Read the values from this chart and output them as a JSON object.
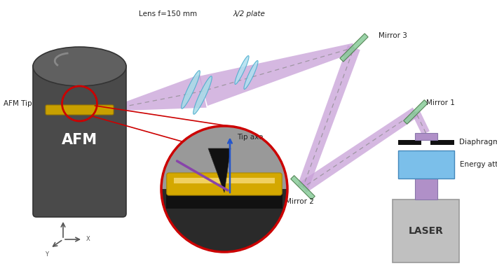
{
  "bg_color": "#ffffff",
  "afm_text": "AFM",
  "afm_text_color": "#ffffff",
  "afm_tip_label": "AFM Tip",
  "laser_color": "#c0c0c0",
  "laser_text": "LASER",
  "energy_att_color": "#7bbfea",
  "energy_att_label": "Energy attenutor",
  "diaphragm_label": "Diaphragm",
  "mirror1_label": "Mirror 1",
  "mirror2_label": "Mirror 2",
  "mirror3_label": "Mirror 3",
  "lens_label": "Lens f=150 mm",
  "halfwave_label": "λ/2 plate",
  "beam_color": "#c8a0d8",
  "beam_alpha": 0.75,
  "mirror_color": "#88cc99",
  "lens_color": "#a8dce8",
  "dashed_color": "#888888",
  "red_circle_color": "#cc0000",
  "tip_axe_label": "Tip axe",
  "coord_color": "#555555",
  "purple_stem": "#b090c8",
  "afm_dark": "#4a4a4a",
  "afm_mid": "#606060",
  "afm_light": "#888888"
}
